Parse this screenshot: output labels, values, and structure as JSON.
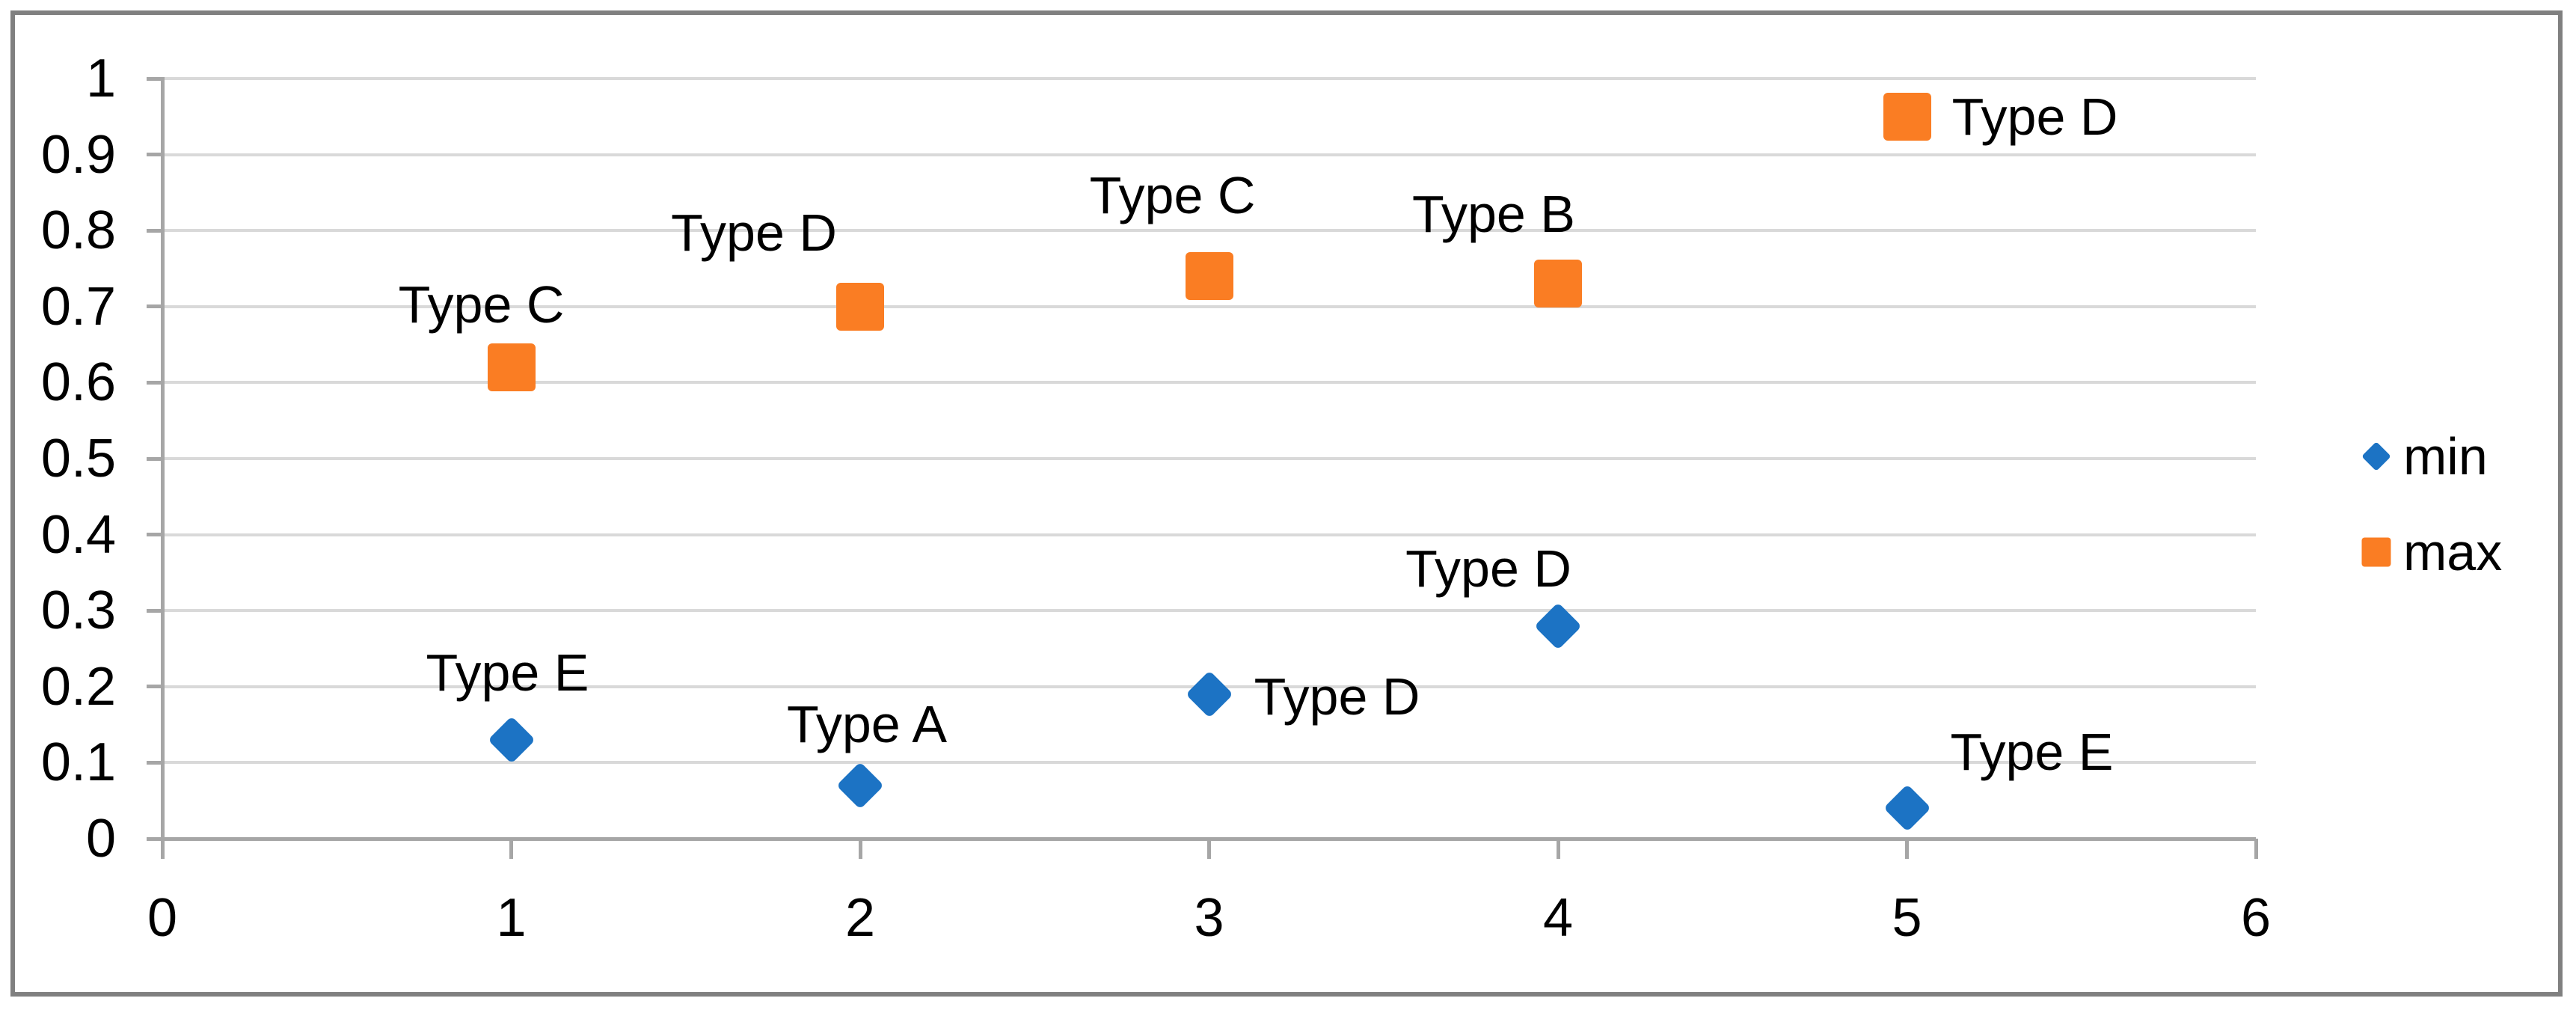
{
  "figure": {
    "background": "#FFFFFF"
  },
  "colors": {
    "series_min": "#1C73C4",
    "series_max": "#FA7D23",
    "gridline": "#D9D9D9",
    "axis": "#A6A6A6",
    "frame": "#808080",
    "text": "#000000"
  },
  "chart_data": {
    "type": "scatter",
    "title": "",
    "xlabel": "",
    "ylabel": "",
    "xlim": [
      0,
      6
    ],
    "ylim": [
      0,
      1
    ],
    "x_tick_labels": [
      "0",
      "1",
      "2",
      "3",
      "4",
      "5",
      "6"
    ],
    "x_tick_values": [
      0,
      1,
      2,
      3,
      4,
      5,
      6
    ],
    "y_tick_labels": [
      "1",
      "0.9",
      "0.8",
      "0.7",
      "0.6",
      "0.5",
      "0.4",
      "0.3",
      "0.2",
      "0.1",
      "0"
    ],
    "y_tick_values": [
      1,
      0.9,
      0.8,
      0.7,
      0.6,
      0.5,
      0.4,
      0.3,
      0.2,
      0.1,
      0
    ],
    "grid": "horizontal-only",
    "legend_position": "right",
    "series": [
      {
        "name": "min",
        "marker": "diamond",
        "color": "#1C73C4",
        "points": [
          {
            "x": 1,
            "y": 0.13,
            "label": "Type E",
            "label_offset": [
              -5,
              -90
            ]
          },
          {
            "x": 2,
            "y": 0.07,
            "label": "Type A",
            "label_offset": [
              9,
              -82
            ]
          },
          {
            "x": 3,
            "y": 0.19,
            "label": "Type D",
            "label_offset": [
              171,
              3
            ]
          },
          {
            "x": 4,
            "y": 0.28,
            "label": "Type D",
            "label_offset": [
              -93,
              -77
            ]
          },
          {
            "x": 5,
            "y": 0.04,
            "label": "Type E",
            "label_offset": [
              167,
              -75
            ]
          }
        ]
      },
      {
        "name": "max",
        "marker": "square",
        "color": "#FA7D23",
        "points": [
          {
            "x": 1,
            "y": 0.62,
            "label": "Type C",
            "label_offset": [
              -40,
              -84
            ]
          },
          {
            "x": 2,
            "y": 0.7,
            "label": "Type D",
            "label_offset": [
              -142,
              -99
            ]
          },
          {
            "x": 3,
            "y": 0.74,
            "label": "Type C",
            "label_offset": [
              -49,
              -108
            ]
          },
          {
            "x": 4,
            "y": 0.73,
            "label": "Type B",
            "label_offset": [
              -86,
              -93
            ]
          },
          {
            "x": 5,
            "y": 0.95,
            "label": "Type D",
            "label_offset": [
              171,
              0
            ]
          }
        ]
      }
    ]
  },
  "legend": {
    "items": [
      {
        "label": "min",
        "marker": "diamond",
        "color": "#1C73C4"
      },
      {
        "label": "max",
        "marker": "square",
        "color": "#FA7D23"
      }
    ]
  }
}
